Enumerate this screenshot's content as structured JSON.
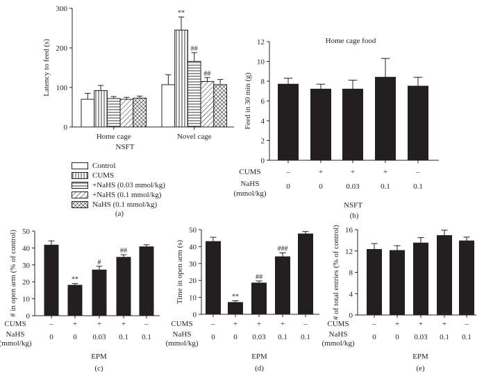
{
  "chart_data": [
    {
      "id": "a",
      "type": "bar",
      "panel_label": "(a)",
      "title": "",
      "xlabel": "NSFT",
      "ylabel": "Latency to feed (s)",
      "ylim": [
        0,
        300
      ],
      "yticks": [
        0,
        100,
        200,
        300
      ],
      "categories": [
        "Home cage",
        "Novel cage"
      ],
      "series": [
        {
          "name": "Control",
          "pattern": "none",
          "values": [
            70,
            107
          ],
          "errors": [
            15,
            25
          ],
          "annotations": [
            "",
            ""
          ]
        },
        {
          "name": "CUMS",
          "pattern": "vertical",
          "values": [
            92,
            245
          ],
          "errors": [
            13,
            33
          ],
          "annotations": [
            "",
            "**"
          ]
        },
        {
          "name": "+NaHS (0.03 mmol/kg)",
          "pattern": "horizontal",
          "values": [
            72,
            166
          ],
          "errors": [
            5,
            22
          ],
          "annotations": [
            "",
            "##"
          ]
        },
        {
          "name": "+NaHS (0.1 mmol/kg)",
          "pattern": "diagonal",
          "values": [
            70,
            115
          ],
          "errors": [
            5,
            10
          ],
          "annotations": [
            "",
            "##"
          ]
        },
        {
          "name": "NaHS (0.1 mmol/kg)",
          "pattern": "crosshatch",
          "values": [
            73,
            107
          ],
          "errors": [
            5,
            13
          ],
          "annotations": [
            "",
            ""
          ]
        }
      ],
      "legend": "bottom"
    },
    {
      "id": "b",
      "type": "bar",
      "panel_label": "(b)",
      "title": "Home cage food",
      "xlabel": "NSFT",
      "ylabel": "Feed in 30 min (g)",
      "ylim": [
        0,
        12
      ],
      "yticks": [
        0,
        2,
        4,
        6,
        8,
        10,
        12
      ],
      "row_labels": [
        "CUMS",
        "NaHS",
        "(mmol/kg)"
      ],
      "cums": [
        "–",
        "+",
        "+",
        "+",
        "–"
      ],
      "nahs": [
        "0",
        "0",
        "0.03",
        "0.1",
        "0.1"
      ],
      "values": [
        7.7,
        7.2,
        7.2,
        8.4,
        7.5
      ],
      "errors": [
        0.6,
        0.5,
        0.9,
        1.9,
        0.9
      ],
      "annotations": [
        "",
        "",
        "",
        "",
        ""
      ],
      "color": "#231f20"
    },
    {
      "id": "c",
      "type": "bar",
      "panel_label": "(c)",
      "title": "",
      "xlabel": "EPM",
      "ylabel": "# in open arm (% of control)",
      "ylim": [
        0,
        50
      ],
      "yticks": [
        0,
        10,
        20,
        30,
        40,
        50
      ],
      "row_labels": [
        "CUMS",
        "NaHS",
        "(mmol/kg)"
      ],
      "cums": [
        "–",
        "+",
        "+",
        "+",
        "–"
      ],
      "nahs": [
        "0",
        "0",
        "0.03",
        "0.1",
        "0.1"
      ],
      "values": [
        41.7,
        18,
        27,
        34.5,
        40.7
      ],
      "errors": [
        2.5,
        1,
        2.2,
        1.5,
        1.2
      ],
      "annotations": [
        "",
        "**",
        "#",
        "##",
        ""
      ],
      "color": "#231f20"
    },
    {
      "id": "d",
      "type": "bar",
      "panel_label": "(d)",
      "title": "",
      "xlabel": "EPM",
      "ylabel": "Time in open arm (s)",
      "ylim": [
        0,
        50
      ],
      "yticks": [
        0,
        10,
        20,
        30,
        40,
        50
      ],
      "row_labels": [
        "CUMS",
        "NaHS",
        "(mmol/kg)"
      ],
      "cums": [
        "–",
        "+",
        "+",
        "+",
        "–"
      ],
      "nahs": [
        "0",
        "0",
        "0.03",
        "0.1",
        "0.1"
      ],
      "values": [
        43,
        7,
        18.5,
        34,
        47.5
      ],
      "errors": [
        2.5,
        1,
        1.2,
        2.3,
        1.4
      ],
      "annotations": [
        "",
        "**",
        "##",
        "###",
        ""
      ],
      "color": "#231f20"
    },
    {
      "id": "e",
      "type": "bar",
      "panel_label": "(e)",
      "title": "",
      "xlabel": "EPM",
      "ylabel": "# of total entries (% of control)",
      "ylim": [
        0,
        16
      ],
      "yticks": [
        0,
        4,
        8,
        12,
        16
      ],
      "row_labels": [
        "CUMS",
        "NaHS",
        "(mmol/kg)"
      ],
      "cums": [
        "–",
        "+",
        "+",
        "+",
        "–"
      ],
      "nahs": [
        "0",
        "0",
        "0.03",
        "0.1",
        "0.1"
      ],
      "values": [
        12.3,
        12.1,
        13.5,
        14.9,
        13.9
      ],
      "errors": [
        1.1,
        0.9,
        1,
        1,
        0.7
      ],
      "annotations": [
        "",
        "",
        "",
        "",
        ""
      ],
      "color": "#231f20"
    }
  ]
}
